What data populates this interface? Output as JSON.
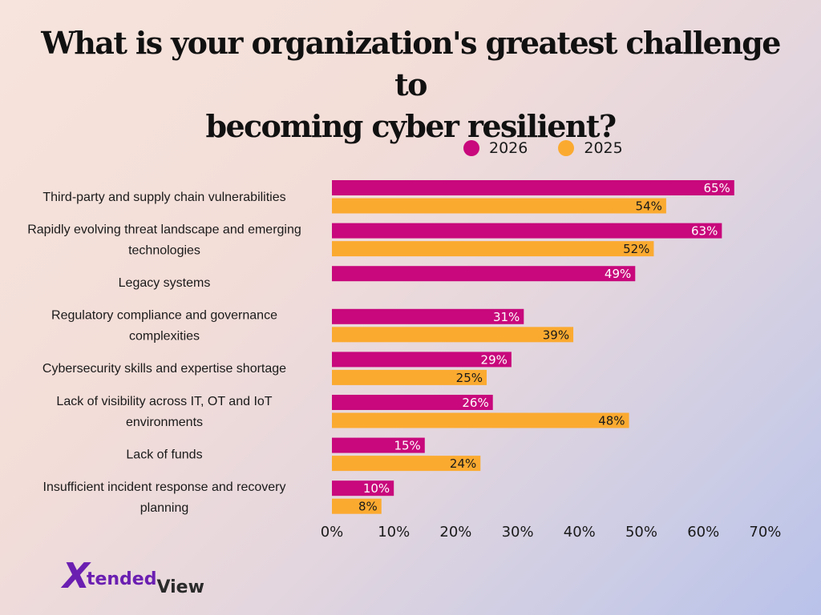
{
  "title": {
    "line1": "What is your organization's greatest challenge to",
    "line2": "becoming cyber resilient?"
  },
  "legend": [
    {
      "label": "2026",
      "color": "#c8087c"
    },
    {
      "label": "2025",
      "color": "#fbaa30"
    }
  ],
  "logo": {
    "mark": "X",
    "text1": "tended",
    "text2": "View"
  },
  "chart_data": {
    "type": "bar",
    "orientation": "horizontal",
    "categories": [
      [
        "Third-party and supply chain vulnerabilities"
      ],
      [
        "Rapidly evolving threat landscape and emerging",
        "technologies"
      ],
      [
        "Legacy systems"
      ],
      [
        "Regulatory compliance and governance",
        "complexities"
      ],
      [
        "Cybersecurity skills and expertise shortage"
      ],
      [
        "Lack of visibility across IT, OT and IoT",
        "environments"
      ],
      [
        "Lack of funds"
      ],
      [
        "Insufficient incident response and recovery",
        "planning"
      ]
    ],
    "series": [
      {
        "name": "2026",
        "color": "#c8087c",
        "values": [
          65,
          63,
          49,
          31,
          29,
          26,
          15,
          10
        ],
        "labels": [
          "65%",
          "63%",
          "49%",
          "31%",
          "29%",
          "26%",
          "15%",
          "10%"
        ]
      },
      {
        "name": "2025",
        "color": "#fbaa30",
        "values": [
          54,
          52,
          null,
          39,
          25,
          48,
          24,
          8
        ],
        "labels": [
          "54%",
          "52%",
          "",
          "39%",
          "25%",
          "48%",
          "24%",
          "8%"
        ]
      }
    ],
    "xlim": [
      0,
      70
    ],
    "xticks": [
      "0%",
      "10%",
      "20%",
      "30%",
      "40%",
      "50%",
      "60%",
      "70%"
    ],
    "grid": false,
    "legend_position": "top"
  }
}
